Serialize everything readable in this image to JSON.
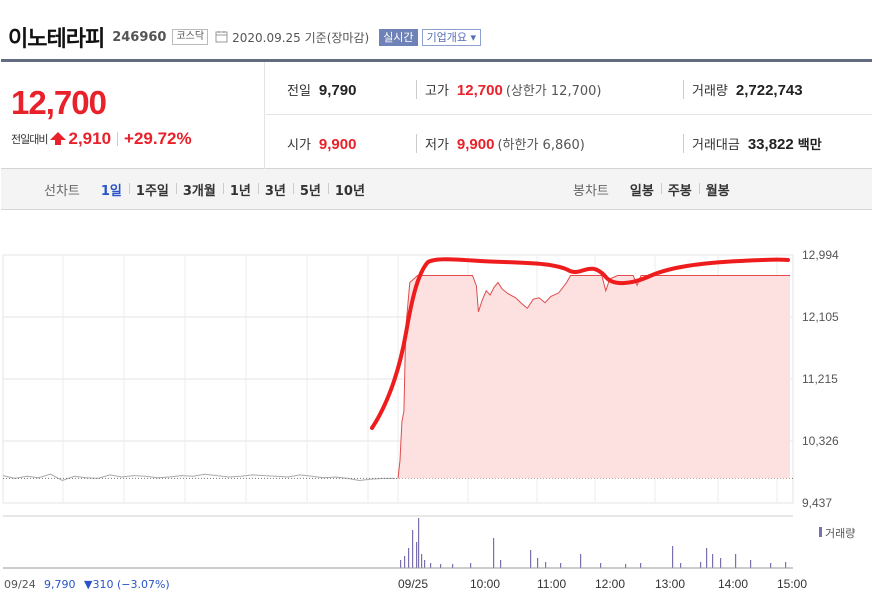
{
  "header": {
    "stock_name": "이노테라피",
    "stock_code": "246960",
    "market": "코스닥",
    "base_date": "2020.09.25 기준(장마감)",
    "realtime_label": "실시간",
    "company_info_label": "기업개요 ▾"
  },
  "quote": {
    "current_price": "12,700",
    "change_label": "전일대비",
    "change_amount": "2,910",
    "change_rate": "+29.72%",
    "prev_close_label": "전일",
    "prev_close": "9,790",
    "high_label": "고가",
    "high": "12,700",
    "high_note": "(상한가 12,700)",
    "volume_label": "거래량",
    "volume": "2,722,743",
    "open_label": "시가",
    "open": "9,900",
    "low_label": "저가",
    "low": "9,900",
    "low_note": "(하한가 6,860)",
    "trade_value_label": "거래대금",
    "trade_value": "33,822",
    "trade_value_unit": "백만",
    "up_color": "#e8212a"
  },
  "tabs": {
    "line_chart_label": "선차트",
    "line_periods": [
      "1일",
      "1주일",
      "3개월",
      "1년",
      "3년",
      "5년",
      "10년"
    ],
    "active_period": "1일",
    "candle_chart_label": "봉차트",
    "candle_periods": [
      "일봉",
      "주봉",
      "월봉"
    ]
  },
  "chart_data": {
    "type": "area",
    "y_ticks": [
      "12,994",
      "12,105",
      "11,215",
      "10,326",
      "9,437"
    ],
    "y_tick_values": [
      12994,
      12105,
      11215,
      10326,
      9437
    ],
    "ylim": [
      9437,
      12994
    ],
    "x_ticks": [
      "09/25",
      "10:00",
      "11:00",
      "12:00",
      "13:00",
      "14:00",
      "15:00"
    ],
    "volume_legend": "거래량",
    "prev_day_note_date": "09/24",
    "prev_day_note_price": "9,790",
    "prev_day_note_change": "▼310 (−3.07%)",
    "prev_close": 9790,
    "price_limit_high": 12700,
    "series": [
      {
        "values": [
          [
            0,
            9790
          ],
          [
            0.005,
            10050
          ],
          [
            0.01,
            10600
          ],
          [
            0.015,
            10750
          ],
          [
            0.02,
            11950
          ],
          [
            0.03,
            12600
          ],
          [
            0.05,
            12700
          ],
          [
            0.12,
            12700
          ],
          [
            0.19,
            12700
          ],
          [
            0.2,
            12550
          ],
          [
            0.205,
            12180
          ],
          [
            0.215,
            12350
          ],
          [
            0.225,
            12480
          ],
          [
            0.235,
            12420
          ],
          [
            0.245,
            12530
          ],
          [
            0.255,
            12600
          ],
          [
            0.265,
            12510
          ],
          [
            0.28,
            12440
          ],
          [
            0.3,
            12380
          ],
          [
            0.315,
            12300
          ],
          [
            0.33,
            12230
          ],
          [
            0.345,
            12360
          ],
          [
            0.36,
            12380
          ],
          [
            0.375,
            12310
          ],
          [
            0.39,
            12400
          ],
          [
            0.41,
            12450
          ],
          [
            0.43,
            12600
          ],
          [
            0.44,
            12700
          ],
          [
            0.5,
            12700
          ],
          [
            0.52,
            12700
          ],
          [
            0.53,
            12480
          ],
          [
            0.54,
            12650
          ],
          [
            0.56,
            12700
          ],
          [
            0.6,
            12700
          ],
          [
            0.61,
            12560
          ],
          [
            0.62,
            12700
          ],
          [
            0.7,
            12700
          ]
        ]
      }
    ],
    "prev_day_values": [
      9830,
      9790,
      9820,
      9800,
      9850,
      9760,
      9820,
      9800,
      9790,
      9840,
      9810,
      9830,
      9820,
      9800,
      9810,
      9830,
      9820,
      9850,
      9830,
      9810,
      9820,
      9840,
      9830,
      9820,
      9810,
      9840,
      9820,
      9800,
      9810,
      9790,
      9760,
      9780,
      9790,
      9790
    ],
    "annotation_curve": "hand-drawn red trend line over price area",
    "colors": {
      "price_line": "#e14b4b",
      "area_fill": "#fde0e0",
      "prev_day_line": "#aaaaaa",
      "volume_bar": "#7b6fb0",
      "annotation": "#ee1c1c"
    }
  }
}
